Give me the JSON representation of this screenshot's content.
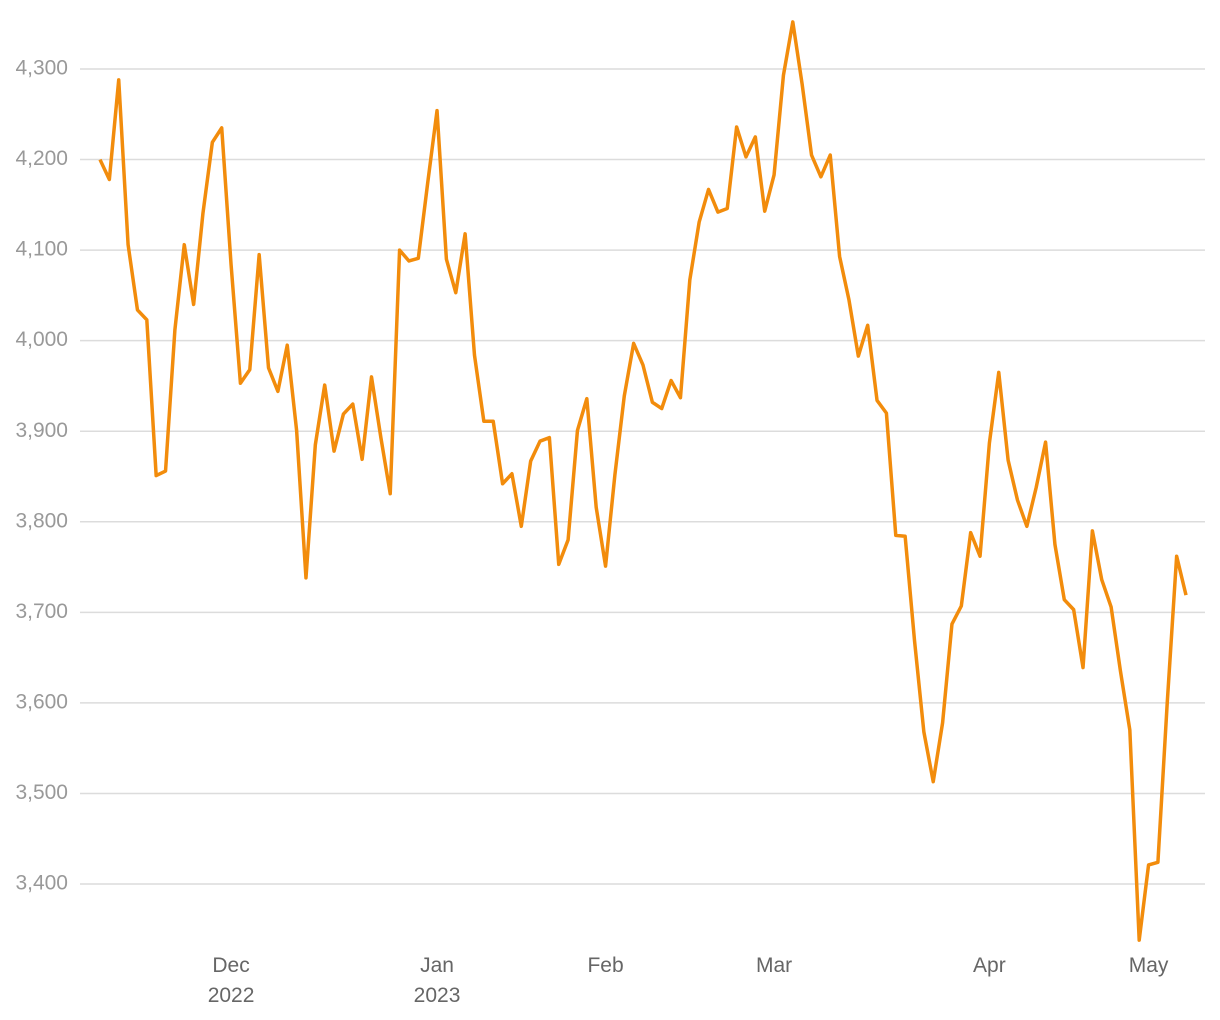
{
  "chart_data": {
    "type": "line",
    "categories": [
      null,
      null,
      null,
      null,
      null,
      null,
      null,
      null,
      null,
      null,
      null,
      null,
      null,
      null,
      "Dec\n2022",
      null,
      null,
      null,
      null,
      null,
      null,
      null,
      null,
      null,
      null,
      null,
      null,
      null,
      null,
      null,
      null,
      null,
      null,
      null,
      null,
      null,
      "Jan\n2023",
      null,
      null,
      null,
      null,
      null,
      null,
      null,
      null,
      null,
      null,
      null,
      null,
      null,
      null,
      null,
      null,
      null,
      "Feb",
      null,
      null,
      null,
      null,
      null,
      null,
      null,
      null,
      null,
      null,
      null,
      null,
      null,
      null,
      null,
      null,
      null,
      "Mar",
      null,
      null,
      null,
      null,
      null,
      null,
      null,
      null,
      null,
      null,
      null,
      null,
      null,
      null,
      null,
      null,
      null,
      null,
      null,
      null,
      null,
      null,
      "Apr",
      null,
      null,
      null,
      null,
      null,
      null,
      null,
      null,
      null,
      null,
      null,
      null,
      null,
      null,
      null,
      null,
      "May",
      null,
      null,
      null,
      null
    ],
    "series": [
      {
        "color": "#f28c0c",
        "values": [
          4200,
          4178,
          4288,
          4106,
          4034,
          4023,
          3851,
          3856,
          4012,
          4106,
          4040,
          4141,
          4219,
          4235,
          4084,
          3953,
          3968,
          4095,
          3970,
          3944,
          3995,
          3901,
          3738,
          3885,
          3951,
          3878,
          3919,
          3930,
          3869,
          3960,
          3893,
          3831,
          4100,
          4088,
          4091,
          4174,
          4254,
          4090,
          4053,
          4118,
          3984,
          3911,
          3911,
          3842,
          3853,
          3795,
          3867,
          3889,
          3893,
          3753,
          3780,
          3901,
          3936,
          3816,
          3751,
          3852,
          3939,
          3997,
          3973,
          3932,
          3925,
          3956,
          3937,
          4067,
          4131,
          4167,
          4142,
          4146,
          4236,
          4203,
          4225,
          4143,
          4183,
          4293,
          4352,
          4283,
          4205,
          4181,
          4205,
          4093,
          4045,
          3983,
          4017,
          3934,
          3920,
          3785,
          3784,
          3669,
          3568,
          3513,
          3578,
          3687,
          3707,
          3788,
          3762,
          3887,
          3965,
          3868,
          3824,
          3795,
          3838,
          3888,
          3775,
          3714,
          3703,
          3639,
          3790,
          3736,
          3706,
          3635,
          3570,
          3338,
          3421,
          3424,
          3601,
          3762,
          3719
        ]
      }
    ],
    "ylim": [
      3330,
      4355
    ],
    "yticks": [
      {
        "value": 3400,
        "label": "3,400"
      },
      {
        "value": 3500,
        "label": "3,500"
      },
      {
        "value": 3600,
        "label": "3,600"
      },
      {
        "value": 3700,
        "label": "3,700"
      },
      {
        "value": 3800,
        "label": "3,800"
      },
      {
        "value": 3900,
        "label": "3,900"
      },
      {
        "value": 4000,
        "label": "4,000"
      },
      {
        "value": 4100,
        "label": "4,100"
      },
      {
        "value": 4200,
        "label": "4,200"
      },
      {
        "value": 4300,
        "label": "4,300"
      }
    ],
    "grid": true
  }
}
